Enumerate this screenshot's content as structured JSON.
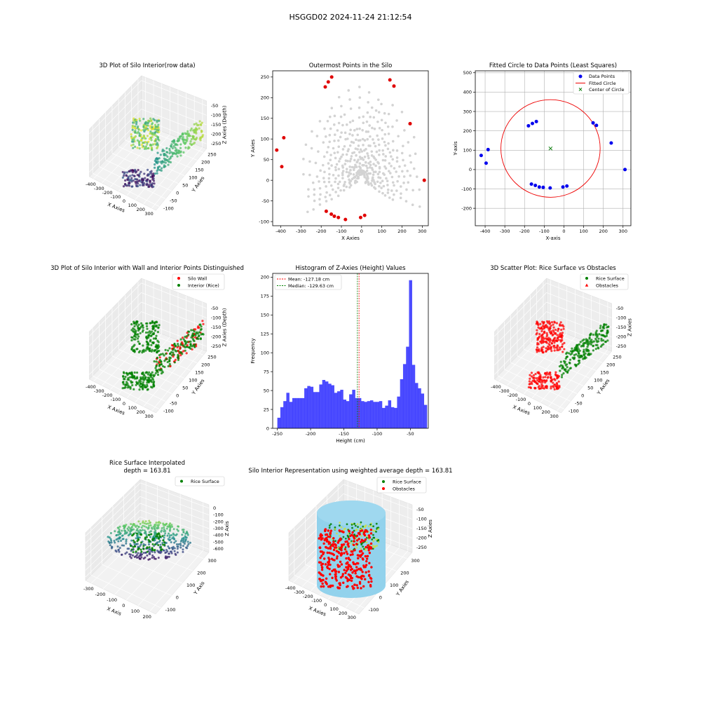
{
  "figure": {
    "suptitle": "HSGGD02 2024-11-24 21:12:54"
  },
  "chart_data": [
    {
      "id": "p1",
      "type": "scatter3d",
      "title": "3D Plot of Silo Interior(row data)",
      "xlabel": "X Axies",
      "ylabel": "Y Axies",
      "zlabel": "Z Axies (Depth)",
      "x_ticks": [
        "-400",
        "-300",
        "-200",
        "-100",
        "0",
        "100",
        "200",
        "300"
      ],
      "y_ticks": [
        "-100",
        "-50",
        "0",
        "50",
        "100",
        "150",
        "200",
        "250"
      ],
      "z_ticks": [
        "-50",
        "-100",
        "-150",
        "-200",
        "-250"
      ],
      "xlim": [
        -420,
        310
      ],
      "ylim": [
        -100,
        250
      ],
      "zlim": [
        -250,
        -30
      ],
      "colormap": "viridis"
    },
    {
      "id": "p2",
      "type": "scatter",
      "title": "Outermost Points in the Silo",
      "xlabel": "X Axies",
      "ylabel": "Y Axies",
      "x_ticks": [
        -400,
        -300,
        -200,
        -100,
        0,
        100,
        200,
        300
      ],
      "y_ticks": [
        -100,
        -50,
        0,
        50,
        100,
        150,
        200,
        250
      ],
      "xlim": [
        -440,
        330
      ],
      "ylim": [
        -110,
        265
      ],
      "colors": {
        "all": "#d3d3d3",
        "outer": "#e00000"
      },
      "outer_points": [
        {
          "x": -420,
          "y": 73
        },
        {
          "x": -395,
          "y": 33
        },
        {
          "x": -385,
          "y": 103
        },
        {
          "x": -180,
          "y": 226
        },
        {
          "x": -165,
          "y": 238
        },
        {
          "x": -148,
          "y": 250
        },
        {
          "x": -175,
          "y": -75
        },
        {
          "x": -150,
          "y": -82
        },
        {
          "x": -135,
          "y": -87
        },
        {
          "x": -115,
          "y": -90
        },
        {
          "x": -80,
          "y": -95
        },
        {
          "x": -5,
          "y": -90
        },
        {
          "x": 15,
          "y": -85
        },
        {
          "x": 140,
          "y": 243
        },
        {
          "x": 160,
          "y": 228
        },
        {
          "x": 240,
          "y": 137
        },
        {
          "x": 310,
          "y": 0
        }
      ]
    },
    {
      "id": "p3",
      "type": "scatter",
      "title": "Fitted Circle to Data Points (Least Squares)",
      "xlabel": "X-axis",
      "ylabel": "Y-axis",
      "x_ticks": [
        -400,
        -300,
        -200,
        -100,
        0,
        100,
        200,
        300
      ],
      "y_ticks": [
        -200,
        -100,
        0,
        100,
        200,
        300,
        400,
        500
      ],
      "xlim": [
        -450,
        340
      ],
      "ylim": [
        -290,
        510
      ],
      "grid": true,
      "legend_position": "top-right",
      "legend": [
        "Data Points",
        "Fitted Circle",
        "Center of Circle"
      ],
      "colors": {
        "points": "#0000ee",
        "circle": "#ee0000",
        "center": "#007700"
      },
      "circle": {
        "cx": -68,
        "cy": 109,
        "r": 252
      },
      "points": [
        {
          "x": -420,
          "y": 73
        },
        {
          "x": -395,
          "y": 33
        },
        {
          "x": -385,
          "y": 103
        },
        {
          "x": -180,
          "y": 226
        },
        {
          "x": -160,
          "y": 238
        },
        {
          "x": -140,
          "y": 248
        },
        {
          "x": -165,
          "y": -75
        },
        {
          "x": -145,
          "y": -82
        },
        {
          "x": -125,
          "y": -90
        },
        {
          "x": -105,
          "y": -92
        },
        {
          "x": -70,
          "y": -95
        },
        {
          "x": -5,
          "y": -90
        },
        {
          "x": 15,
          "y": -85
        },
        {
          "x": 148,
          "y": 241
        },
        {
          "x": 165,
          "y": 228
        },
        {
          "x": 240,
          "y": 137
        },
        {
          "x": 310,
          "y": 0
        }
      ]
    },
    {
      "id": "p4",
      "type": "scatter3d",
      "title": "3D Plot of Silo Interior with Wall and Interior Points Distinguished",
      "xlabel": "X Axies",
      "ylabel": "Y Axies",
      "zlabel": "Z Axies (Depth)",
      "x_ticks": [
        "-400",
        "-300",
        "-200",
        "-100",
        "0",
        "100",
        "200",
        "300"
      ],
      "y_ticks": [
        "-100",
        "-50",
        "0",
        "50",
        "100",
        "150",
        "200",
        "250"
      ],
      "z_ticks": [
        "-50",
        "-100",
        "-150",
        "-200",
        "-250"
      ],
      "legend": [
        "Silo Wall",
        "Interior (Rice)"
      ],
      "legend_position": "top-right",
      "colors": [
        "#ff0000",
        "#008000"
      ]
    },
    {
      "id": "p5",
      "type": "histogram",
      "title": "Histogram of Z-Axies (Height) Values",
      "xlabel": "Height (cm)",
      "ylabel": "Frequency",
      "x_ticks": [
        -250,
        -200,
        -150,
        -100,
        -50
      ],
      "y_ticks": [
        0,
        25,
        50,
        75,
        100,
        125,
        150,
        175,
        200
      ],
      "xlim": [
        -257,
        -23
      ],
      "ylim": [
        0,
        205
      ],
      "bin_start": -250,
      "bin_width": 4.5,
      "counts": [
        14,
        28,
        36,
        47,
        35,
        40,
        40,
        40,
        40,
        53,
        56,
        55,
        48,
        48,
        58,
        64,
        62,
        59,
        57,
        47,
        49,
        51,
        38,
        36,
        45,
        51,
        40,
        40,
        36,
        35,
        36,
        37,
        35,
        35,
        36,
        27,
        30,
        37,
        28,
        27,
        42,
        65,
        85,
        108,
        196,
        84,
        60,
        53,
        46,
        31
      ],
      "color": "#0000ff",
      "mean": -127.18,
      "median": -129.63,
      "legend": [
        "Mean: -127.18 cm",
        "Median: -129.63 cm"
      ],
      "legend_position": "top-left",
      "line_colors": {
        "mean": "#ff0000",
        "median": "#008000"
      }
    },
    {
      "id": "p6",
      "type": "scatter3d",
      "title": "3D Scatter Plot: Rice Surface vs Obstacles",
      "xlabel": "X Axies",
      "ylabel": "Y Axies",
      "zlabel": "Z Axies",
      "x_ticks": [
        "-400",
        "-300",
        "-200",
        "-100",
        "0",
        "100",
        "200",
        "300"
      ],
      "y_ticks": [
        "-100",
        "-50",
        "0",
        "50",
        "100",
        "150",
        "200",
        "250"
      ],
      "z_ticks": [
        "-50",
        "-100",
        "-150",
        "-200",
        "-250"
      ],
      "legend": [
        "Rice Surface",
        "Obstacles"
      ],
      "legend_position": "top-right",
      "colors": [
        "#008000",
        "#ff0000"
      ]
    },
    {
      "id": "p7",
      "type": "surface3d",
      "title": "Rice Surface Interpolated",
      "subtitle": "depth = 163.81",
      "xlabel": "X Axis",
      "ylabel": "Y Axis",
      "zlabel": "Z Axis",
      "x_ticks": [
        "-300",
        "-200",
        "-100",
        "0",
        "100",
        "200"
      ],
      "y_ticks": [
        "-100",
        "0",
        "100",
        "200",
        "300"
      ],
      "z_ticks": [
        "0",
        "-100",
        "-200",
        "-300",
        "-400",
        "-500",
        "-600"
      ],
      "legend": [
        "Rice Surface"
      ],
      "legend_position": "top-right",
      "colors": [
        "#008000"
      ]
    },
    {
      "id": "p8",
      "type": "scatter3d",
      "title": "Silo Interior Representation using weighted average depth = 163.81",
      "xlabel": "X Axies",
      "ylabel": "Y Axies",
      "zlabel": "Z Axies",
      "x_ticks": [
        "-400",
        "-300",
        "-200",
        "-100",
        "0",
        "100",
        "200",
        "300"
      ],
      "y_ticks": [
        "-100",
        "0",
        "100",
        "200",
        "300"
      ],
      "z_ticks": [
        "-50",
        "-100",
        "-150",
        "-200",
        "-250"
      ],
      "legend": [
        "Rice Surface",
        "Obstacles"
      ],
      "legend_position": "top-right",
      "colors": [
        "#008000",
        "#ff0000",
        "#87ceeb"
      ]
    }
  ]
}
